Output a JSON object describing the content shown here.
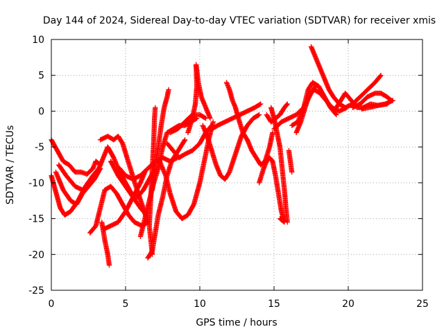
{
  "chart_data": {
    "type": "scatter",
    "title": "Day 144 of 2024, Sidereal Day-to-day VTEC variation (SDTVAR) for receiver xmis",
    "xlabel": "GPS time / hours",
    "ylabel": "SDTVAR / TECUs",
    "xlim": [
      0,
      25
    ],
    "ylim": [
      -25,
      10
    ],
    "xticks": [
      0,
      5,
      10,
      15,
      20,
      25
    ],
    "yticks": [
      -25,
      -20,
      -15,
      -10,
      -5,
      0,
      5,
      10
    ],
    "grid": true,
    "legend": "none",
    "marker": "+",
    "color": "#ff0000",
    "series": [
      {
        "name": "track-1",
        "points": [
          [
            0.0,
            -4.0
          ],
          [
            0.4,
            -5.5
          ],
          [
            0.8,
            -7.0
          ],
          [
            1.2,
            -7.5
          ],
          [
            1.6,
            -8.5
          ],
          [
            2.0,
            -8.5
          ],
          [
            2.4,
            -8.8
          ],
          [
            2.8,
            -8.0
          ],
          [
            3.0,
            -7.0
          ],
          [
            3.3,
            -7.5
          ]
        ]
      },
      {
        "name": "track-2",
        "points": [
          [
            0.0,
            -9.0
          ],
          [
            0.2,
            -10.5
          ],
          [
            0.4,
            -12.0
          ],
          [
            0.6,
            -13.5
          ],
          [
            0.9,
            -14.5
          ],
          [
            1.3,
            -14.0
          ],
          [
            1.8,
            -12.5
          ],
          [
            2.3,
            -10.5
          ],
          [
            2.8,
            -9.0
          ],
          [
            3.2,
            -8.0
          ],
          [
            3.5,
            -6.5
          ],
          [
            3.8,
            -5.0
          ]
        ]
      },
      {
        "name": "track-3",
        "points": [
          [
            0.3,
            -8.5
          ],
          [
            0.8,
            -11.0
          ],
          [
            1.3,
            -12.5
          ],
          [
            1.7,
            -13.0
          ],
          [
            2.1,
            -11.5
          ],
          [
            2.5,
            -10.5
          ],
          [
            2.9,
            -9.5
          ],
          [
            3.3,
            -8.0
          ]
        ]
      },
      {
        "name": "track-4",
        "points": [
          [
            0.5,
            -7.5
          ],
          [
            1.0,
            -9.0
          ],
          [
            1.6,
            -10.5
          ],
          [
            2.1,
            -11.0
          ],
          [
            2.6,
            -10.0
          ],
          [
            3.0,
            -9.0
          ]
        ]
      },
      {
        "name": "track-5",
        "points": [
          [
            2.6,
            -17.0
          ],
          [
            3.0,
            -16.0
          ],
          [
            3.3,
            -13.5
          ],
          [
            3.6,
            -11.0
          ],
          [
            4.0,
            -10.5
          ],
          [
            4.4,
            -11.5
          ],
          [
            4.8,
            -13.0
          ],
          [
            5.2,
            -14.5
          ],
          [
            5.6,
            -15.5
          ],
          [
            6.1,
            -16.0
          ],
          [
            6.5,
            -15.5
          ]
        ]
      },
      {
        "name": "track-6",
        "points": [
          [
            3.4,
            -15.5
          ],
          [
            3.6,
            -18.0
          ],
          [
            3.8,
            -20.0
          ],
          [
            3.9,
            -21.5
          ]
        ]
      },
      {
        "name": "track-7",
        "points": [
          [
            3.5,
            -16.5
          ],
          [
            4.0,
            -16.0
          ],
          [
            4.5,
            -15.5
          ],
          [
            5.0,
            -14.0
          ],
          [
            5.5,
            -12.0
          ],
          [
            6.0,
            -10.0
          ],
          [
            6.3,
            -8.5
          ]
        ]
      },
      {
        "name": "track-8",
        "points": [
          [
            3.3,
            -4.0
          ],
          [
            3.8,
            -3.5
          ],
          [
            4.2,
            -4.0
          ],
          [
            4.5,
            -3.5
          ],
          [
            4.8,
            -4.5
          ],
          [
            5.1,
            -6.5
          ],
          [
            5.4,
            -8.5
          ],
          [
            5.7,
            -10.5
          ],
          [
            6.1,
            -13.0
          ],
          [
            6.5,
            -15.5
          ]
        ]
      },
      {
        "name": "track-9",
        "points": [
          [
            3.8,
            -5.0
          ],
          [
            4.2,
            -6.5
          ],
          [
            4.6,
            -8.5
          ],
          [
            5.0,
            -10.0
          ],
          [
            5.4,
            -11.5
          ],
          [
            5.8,
            -12.0
          ],
          [
            6.2,
            -11.0
          ],
          [
            6.6,
            -9.5
          ],
          [
            7.0,
            -8.0
          ]
        ]
      },
      {
        "name": "track-10",
        "points": [
          [
            4.0,
            -7.0
          ],
          [
            4.5,
            -9.0
          ],
          [
            5.0,
            -10.5
          ],
          [
            5.5,
            -12.0
          ],
          [
            6.0,
            -13.5
          ],
          [
            6.4,
            -14.5
          ]
        ]
      },
      {
        "name": "track-11",
        "points": [
          [
            4.6,
            -8.0
          ],
          [
            5.0,
            -9.0
          ],
          [
            5.5,
            -9.5
          ],
          [
            6.0,
            -9.0
          ],
          [
            6.5,
            -8.0
          ],
          [
            7.0,
            -7.0
          ],
          [
            7.5,
            -6.5
          ],
          [
            8.0,
            -7.0
          ],
          [
            8.5,
            -6.5
          ]
        ]
      },
      {
        "name": "track-12",
        "points": [
          [
            6.0,
            -17.5
          ],
          [
            6.3,
            -15.0
          ],
          [
            6.6,
            -12.5
          ],
          [
            6.9,
            -10.0
          ],
          [
            7.2,
            -8.0
          ],
          [
            7.5,
            -5.0
          ],
          [
            7.8,
            -3.0
          ],
          [
            8.2,
            -2.5
          ],
          [
            8.6,
            -2.0
          ],
          [
            9.0,
            -2.0
          ],
          [
            9.4,
            -1.5
          ],
          [
            9.8,
            -1.0
          ]
        ]
      },
      {
        "name": "track-13",
        "points": [
          [
            6.5,
            -20.5
          ],
          [
            6.8,
            -19.5
          ],
          [
            7.0,
            -17.0
          ],
          [
            7.2,
            -14.5
          ],
          [
            7.5,
            -12.0
          ],
          [
            7.8,
            -9.0
          ],
          [
            8.1,
            -7.0
          ],
          [
            8.4,
            -6.0
          ],
          [
            8.7,
            -5.0
          ],
          [
            9.0,
            -4.0
          ]
        ]
      },
      {
        "name": "track-14",
        "points": [
          [
            6.8,
            -20.0
          ],
          [
            6.6,
            -16.0
          ],
          [
            6.7,
            -12.0
          ],
          [
            6.8,
            -8.0
          ],
          [
            6.9,
            -4.0
          ],
          [
            6.95,
            -1.0
          ],
          [
            7.0,
            0.5
          ]
        ]
      },
      {
        "name": "track-15",
        "points": [
          [
            6.8,
            -11.0
          ],
          [
            7.0,
            -7.5
          ],
          [
            7.2,
            -5.0
          ],
          [
            7.4,
            -2.0
          ],
          [
            7.6,
            0.5
          ],
          [
            7.8,
            2.0
          ],
          [
            7.9,
            3.0
          ]
        ]
      },
      {
        "name": "track-16",
        "points": [
          [
            7.3,
            -7.0
          ],
          [
            7.7,
            -9.0
          ],
          [
            8.0,
            -11.5
          ],
          [
            8.4,
            -14.0
          ],
          [
            8.8,
            -15.0
          ],
          [
            9.2,
            -14.5
          ],
          [
            9.6,
            -13.0
          ],
          [
            10.0,
            -10.0
          ],
          [
            10.3,
            -7.0
          ],
          [
            10.6,
            -4.0
          ],
          [
            10.9,
            -1.5
          ]
        ]
      },
      {
        "name": "track-17",
        "points": [
          [
            7.8,
            -4.5
          ],
          [
            8.2,
            -5.5
          ],
          [
            8.6,
            -6.5
          ],
          [
            9.0,
            -6.0
          ],
          [
            9.5,
            -5.5
          ],
          [
            10.0,
            -4.5
          ],
          [
            10.4,
            -3.0
          ],
          [
            10.8,
            -2.0
          ]
        ]
      },
      {
        "name": "track-18",
        "points": [
          [
            8.0,
            -3.0
          ],
          [
            8.5,
            -2.5
          ],
          [
            9.0,
            -1.5
          ],
          [
            9.5,
            -0.5
          ],
          [
            10.0,
            -0.5
          ],
          [
            10.4,
            -1.0
          ]
        ]
      },
      {
        "name": "track-19",
        "points": [
          [
            9.2,
            -3.0
          ],
          [
            9.5,
            -1.0
          ],
          [
            9.7,
            1.0
          ],
          [
            9.8,
            3.5
          ],
          [
            9.75,
            6.5
          ],
          [
            9.9,
            4.0
          ],
          [
            10.1,
            2.0
          ],
          [
            10.4,
            0.5
          ],
          [
            10.7,
            -1.0
          ]
        ]
      },
      {
        "name": "track-20",
        "points": [
          [
            10.2,
            -2.0
          ],
          [
            10.5,
            -3.5
          ],
          [
            10.8,
            -5.5
          ],
          [
            11.1,
            -7.5
          ],
          [
            11.4,
            -9.0
          ],
          [
            11.7,
            -9.5
          ],
          [
            12.0,
            -8.5
          ],
          [
            12.4,
            -6.0
          ],
          [
            12.8,
            -3.5
          ],
          [
            13.2,
            -2.0
          ],
          [
            13.6,
            -1.0
          ],
          [
            14.0,
            -0.5
          ]
        ]
      },
      {
        "name": "track-21",
        "points": [
          [
            10.8,
            -2.5
          ],
          [
            11.2,
            -2.0
          ],
          [
            11.7,
            -1.5
          ],
          [
            12.2,
            -1.0
          ],
          [
            12.7,
            -0.5
          ],
          [
            13.2,
            0.0
          ],
          [
            13.7,
            0.5
          ],
          [
            14.1,
            1.0
          ]
        ]
      },
      {
        "name": "track-22",
        "points": [
          [
            11.8,
            4.0
          ],
          [
            12.0,
            3.0
          ],
          [
            12.2,
            1.5
          ],
          [
            12.4,
            0.5
          ],
          [
            12.6,
            -1.0
          ],
          [
            12.9,
            -3.0
          ],
          [
            13.2,
            -4.0
          ],
          [
            13.5,
            -5.5
          ],
          [
            13.8,
            -6.5
          ],
          [
            14.1,
            -7.5
          ],
          [
            14.4,
            -7.0
          ],
          [
            14.7,
            -5.0
          ],
          [
            14.9,
            -3.0
          ]
        ]
      },
      {
        "name": "track-23",
        "points": [
          [
            14.0,
            -10.0
          ],
          [
            14.3,
            -8.0
          ],
          [
            14.5,
            -7.0
          ],
          [
            14.7,
            -6.5
          ],
          [
            14.9,
            -7.0
          ],
          [
            15.1,
            -9.0
          ],
          [
            15.3,
            -11.5
          ],
          [
            15.5,
            -14.0
          ],
          [
            15.7,
            -15.5
          ],
          [
            15.4,
            -15.0
          ]
        ]
      },
      {
        "name": "track-24",
        "points": [
          [
            14.8,
            0.5
          ],
          [
            15.0,
            -1.0
          ],
          [
            15.2,
            -3.0
          ],
          [
            15.4,
            -5.0
          ],
          [
            15.5,
            -7.0
          ],
          [
            15.6,
            -9.0
          ],
          [
            15.7,
            -11.0
          ],
          [
            15.8,
            -13.5
          ],
          [
            15.9,
            -15.5
          ]
        ]
      },
      {
        "name": "track-25",
        "points": [
          [
            14.5,
            -0.5
          ],
          [
            14.8,
            -1.5
          ],
          [
            15.1,
            -1.0
          ],
          [
            15.4,
            -0.5
          ],
          [
            15.7,
            0.5
          ],
          [
            15.9,
            1.0
          ]
        ]
      },
      {
        "name": "track-26",
        "points": [
          [
            15.0,
            -2.5
          ],
          [
            15.5,
            -1.5
          ],
          [
            16.0,
            -1.0
          ],
          [
            16.5,
            -0.5
          ],
          [
            17.0,
            0.5
          ],
          [
            17.5,
            2.5
          ],
          [
            17.8,
            3.5
          ]
        ]
      },
      {
        "name": "track-27",
        "points": [
          [
            16.0,
            -5.5
          ],
          [
            16.1,
            -7.0
          ],
          [
            16.2,
            -8.5
          ]
        ]
      },
      {
        "name": "track-28",
        "points": [
          [
            16.2,
            -2.0
          ],
          [
            16.6,
            -1.5
          ],
          [
            17.0,
            0.5
          ],
          [
            17.3,
            3.0
          ],
          [
            17.6,
            4.0
          ],
          [
            18.0,
            3.5
          ],
          [
            18.4,
            2.0
          ],
          [
            18.8,
            0.5
          ],
          [
            19.2,
            -0.5
          ]
        ]
      },
      {
        "name": "track-29",
        "points": [
          [
            16.5,
            -3.0
          ],
          [
            16.8,
            -1.5
          ],
          [
            17.1,
            0.5
          ],
          [
            17.4,
            2.5
          ],
          [
            17.7,
            3.0
          ],
          [
            18.1,
            2.5
          ],
          [
            18.5,
            1.5
          ],
          [
            18.9,
            0.5
          ],
          [
            19.4,
            0.0
          ],
          [
            19.9,
            0.5
          ]
        ]
      },
      {
        "name": "track-30",
        "points": [
          [
            17.5,
            9.0
          ],
          [
            17.8,
            7.5
          ],
          [
            18.1,
            6.0
          ],
          [
            18.4,
            4.5
          ],
          [
            18.7,
            3.0
          ],
          [
            19.0,
            2.0
          ],
          [
            19.4,
            1.0
          ],
          [
            19.8,
            0.5
          ],
          [
            20.3,
            1.0
          ],
          [
            20.8,
            2.0
          ],
          [
            21.3,
            3.0
          ],
          [
            21.8,
            4.0
          ],
          [
            22.2,
            5.0
          ]
        ]
      },
      {
        "name": "track-31",
        "points": [
          [
            19.2,
            0.5
          ],
          [
            19.5,
            1.5
          ],
          [
            19.8,
            2.5
          ],
          [
            20.2,
            1.5
          ],
          [
            20.6,
            0.5
          ],
          [
            21.0,
            0.5
          ],
          [
            21.5,
            1.0
          ],
          [
            22.0,
            0.8
          ],
          [
            22.5,
            1.0
          ],
          [
            23.0,
            1.5
          ]
        ]
      },
      {
        "name": "track-32",
        "points": [
          [
            20.3,
            0.5
          ],
          [
            20.8,
            1.0
          ],
          [
            21.3,
            2.0
          ],
          [
            21.8,
            2.5
          ],
          [
            22.2,
            2.5
          ],
          [
            22.6,
            2.0
          ],
          [
            22.9,
            1.5
          ],
          [
            22.6,
            1.0
          ],
          [
            22.0,
            0.8
          ],
          [
            21.4,
            0.5
          ],
          [
            20.9,
            0.3
          ]
        ]
      }
    ]
  }
}
